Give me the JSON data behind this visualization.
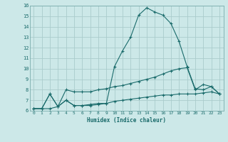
{
  "xlabel": "Humidex (Indice chaleur)",
  "ylabel": "",
  "background_color": "#cce8e8",
  "grid_color": "#aacccc",
  "line_color": "#1a6b6b",
  "xlim": [
    -0.5,
    23.5
  ],
  "ylim": [
    6,
    16
  ],
  "xticks": [
    0,
    1,
    2,
    3,
    4,
    5,
    6,
    7,
    8,
    9,
    10,
    11,
    12,
    13,
    14,
    15,
    16,
    17,
    18,
    19,
    20,
    21,
    22,
    23
  ],
  "yticks": [
    6,
    7,
    8,
    9,
    10,
    11,
    12,
    13,
    14,
    15,
    16
  ],
  "series1_x": [
    0,
    1,
    2,
    3,
    4,
    5,
    6,
    7,
    8,
    9,
    10,
    11,
    12,
    13,
    14,
    15,
    16,
    17,
    18,
    19,
    20,
    21,
    22,
    23
  ],
  "series1_y": [
    6.2,
    6.2,
    6.2,
    6.4,
    7.0,
    6.5,
    6.5,
    6.6,
    6.7,
    6.7,
    10.2,
    11.7,
    13.0,
    15.1,
    15.8,
    15.4,
    15.1,
    14.3,
    12.6,
    10.2,
    8.1,
    8.0,
    8.3,
    7.6
  ],
  "series2_x": [
    0,
    1,
    2,
    3,
    4,
    5,
    6,
    7,
    8,
    9,
    10,
    11,
    12,
    13,
    14,
    15,
    16,
    17,
    18,
    19,
    20,
    21,
    22,
    23
  ],
  "series2_y": [
    6.2,
    6.2,
    7.6,
    6.4,
    8.0,
    7.8,
    7.8,
    7.8,
    8.0,
    8.1,
    8.3,
    8.4,
    8.6,
    8.8,
    9.0,
    9.2,
    9.5,
    9.8,
    10.0,
    10.1,
    8.0,
    8.5,
    8.3,
    7.6
  ],
  "series3_x": [
    0,
    1,
    2,
    3,
    4,
    5,
    6,
    7,
    8,
    9,
    10,
    11,
    12,
    13,
    14,
    15,
    16,
    17,
    18,
    19,
    20,
    21,
    22,
    23
  ],
  "series3_y": [
    6.2,
    6.2,
    7.6,
    6.4,
    7.0,
    6.5,
    6.5,
    6.5,
    6.6,
    6.7,
    6.9,
    7.0,
    7.1,
    7.2,
    7.3,
    7.4,
    7.5,
    7.5,
    7.6,
    7.6,
    7.6,
    7.7,
    7.8,
    7.6
  ]
}
